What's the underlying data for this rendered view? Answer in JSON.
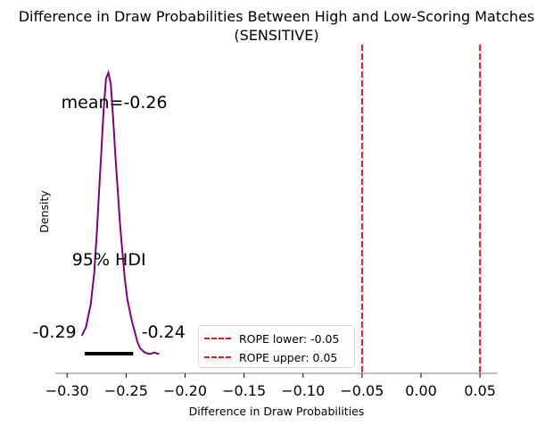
{
  "chart_data": {
    "type": "area",
    "title": "Difference in Draw Probabilities Between High and Low-Scoring Matches",
    "subtitle": "(SENSITIVE)",
    "xlabel": "Difference in Draw Probabilities",
    "ylabel": "Density",
    "xlim": [
      -0.31,
      0.065
    ],
    "ylim": [
      0,
      1.08
    ],
    "xticks": [
      "−0.30",
      "−0.25",
      "−0.20",
      "−0.15",
      "−0.10",
      "−0.05",
      "0.00",
      "0.05"
    ],
    "xtick_values": [
      -0.3,
      -0.25,
      -0.2,
      -0.15,
      -0.1,
      -0.05,
      0.0,
      0.05
    ],
    "density": {
      "color": "#800080",
      "x": [
        -0.2875,
        -0.284,
        -0.28,
        -0.277,
        -0.275,
        -0.273,
        -0.271,
        -0.269,
        -0.267,
        -0.265,
        -0.263,
        -0.261,
        -0.259,
        -0.257,
        -0.255,
        -0.253,
        -0.251,
        -0.249,
        -0.247,
        -0.245,
        -0.243,
        -0.2405,
        -0.238,
        -0.234,
        -0.23,
        -0.226,
        -0.222
      ],
      "y": [
        0.07,
        0.1,
        0.18,
        0.29,
        0.42,
        0.57,
        0.72,
        0.87,
        0.98,
        1.0,
        0.96,
        0.84,
        0.7,
        0.58,
        0.46,
        0.36,
        0.27,
        0.2,
        0.16,
        0.12,
        0.09,
        0.05,
        0.025,
        0.01,
        0.005,
        0.01,
        0.005
      ]
    },
    "mean": {
      "value": -0.26,
      "label": "mean=-0.26"
    },
    "hdi": {
      "label": "95% HDI",
      "low": -0.285,
      "high": -0.244,
      "low_label": "-0.29",
      "high_label": "-0.24"
    },
    "rope": {
      "color": "#e41a1c",
      "lower": -0.05,
      "upper": 0.05
    },
    "legend": {
      "placement": "lower-center",
      "entries": [
        "ROPE lower: -0.05",
        "ROPE upper: 0.05"
      ]
    }
  }
}
